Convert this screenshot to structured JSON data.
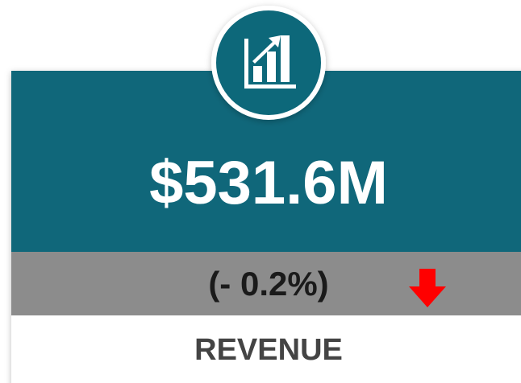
{
  "card": {
    "value": "$531.6M",
    "change": "(- 0.2%)",
    "label": "REVENUE"
  }
}
